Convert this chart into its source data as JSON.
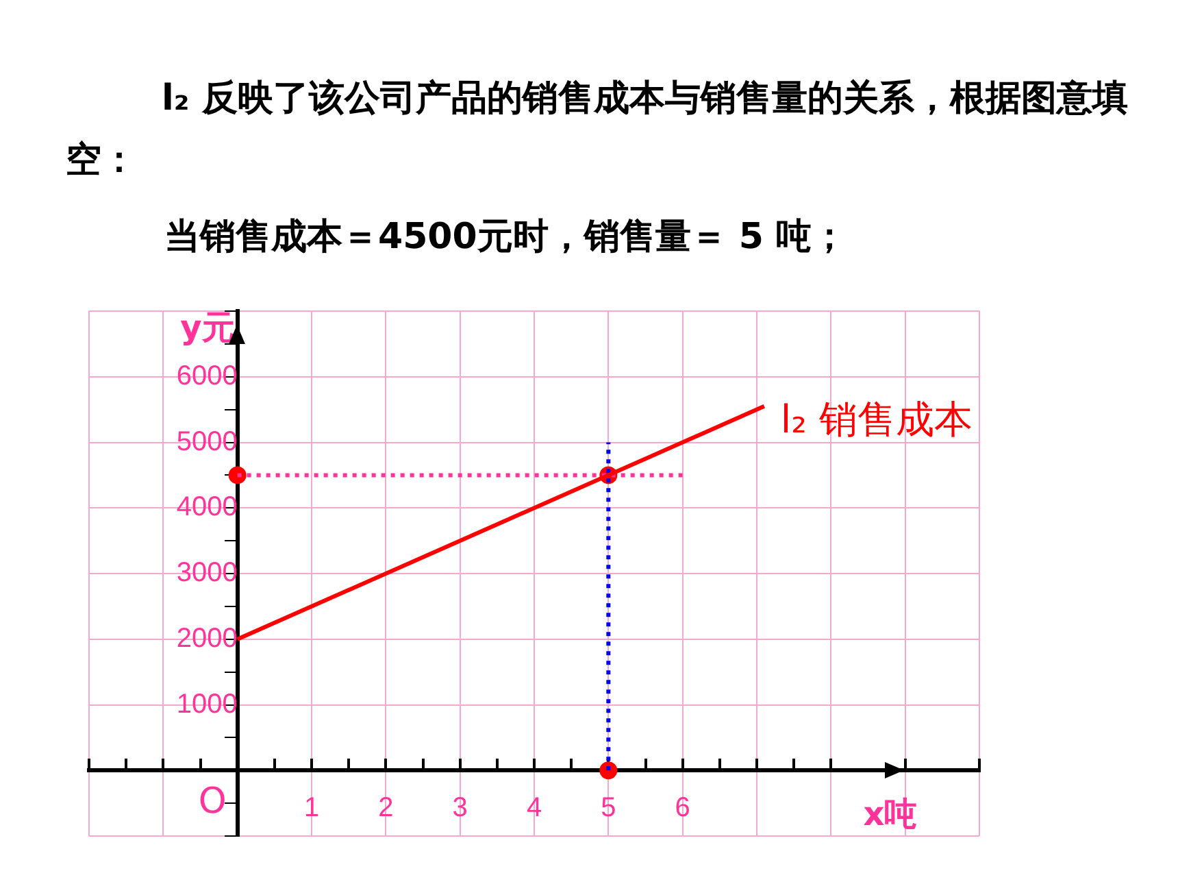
{
  "chart_data": {
    "type": "line",
    "title": "l₂ 反映了该公司产品的销售成本与销售量的关系，根据图意填空：",
    "subtitle": "当销售成本＝4500元时，销售量＝ 5 吨；",
    "xlabel": "x吨",
    "ylabel": "y元",
    "xlim": [
      -2,
      10
    ],
    "ylim": [
      -1000,
      7000
    ],
    "xticks": [
      {
        "value": -2,
        "label": null
      },
      {
        "value": -1.5,
        "label": null
      },
      {
        "value": -1,
        "label": null
      },
      {
        "value": -0.5,
        "label": null
      },
      {
        "value": 0,
        "label": null
      },
      {
        "value": 0.5,
        "label": null
      },
      1,
      {
        "value": 1.5,
        "label": null
      },
      2,
      {
        "value": 2.5,
        "label": null
      },
      3,
      {
        "value": 3.5,
        "label": null
      },
      4,
      {
        "value": 4.5,
        "label": null
      },
      5,
      {
        "value": 5.5,
        "label": null
      },
      6,
      {
        "value": 6.5,
        "label": null
      },
      {
        "value": 7,
        "label": null
      },
      {
        "value": 7.5,
        "label": null
      },
      {
        "value": 8,
        "label": null
      },
      {
        "value": 9,
        "label": null
      },
      {
        "value": 10,
        "label": null
      }
    ],
    "yticks": [
      {
        "value": -1000,
        "label": null
      },
      {
        "value": -500,
        "label": null
      },
      {
        "value": 0,
        "label": null
      },
      {
        "value": 500,
        "label": null
      },
      1000,
      {
        "value": 1500,
        "label": null
      },
      2000,
      {
        "value": 2500,
        "label": null
      },
      3000,
      {
        "value": 3500,
        "label": null
      },
      4000,
      {
        "value": 4500,
        "label": null
      },
      5000,
      {
        "value": 5500,
        "label": null
      },
      6000,
      {
        "value": 6500,
        "label": null
      },
      {
        "value": 7000,
        "label": null
      }
    ],
    "grid": true,
    "legend": false,
    "series": [
      {
        "name": "l₂ 销售成本",
        "color": "#ff0000",
        "x": [
          0,
          7.1
        ],
        "values": [
          2000,
          5550
        ]
      },
      {
        "type": "line",
        "color": "#ff3399",
        "line_style": "dotted",
        "x": [
          0,
          6
        ],
        "values": [
          4500,
          4500
        ]
      },
      {
        "type": "line",
        "color": "#0000ff",
        "line_style": "dotted",
        "x": [
          5,
          5
        ],
        "values": [
          0,
          5000
        ]
      },
      {
        "type": "scatter",
        "color": "#ff0000",
        "marker": "circle",
        "x": [
          0,
          5,
          5
        ],
        "values": [
          4500,
          4500,
          0
        ]
      }
    ],
    "annotations": [
      "O"
    ]
  }
}
